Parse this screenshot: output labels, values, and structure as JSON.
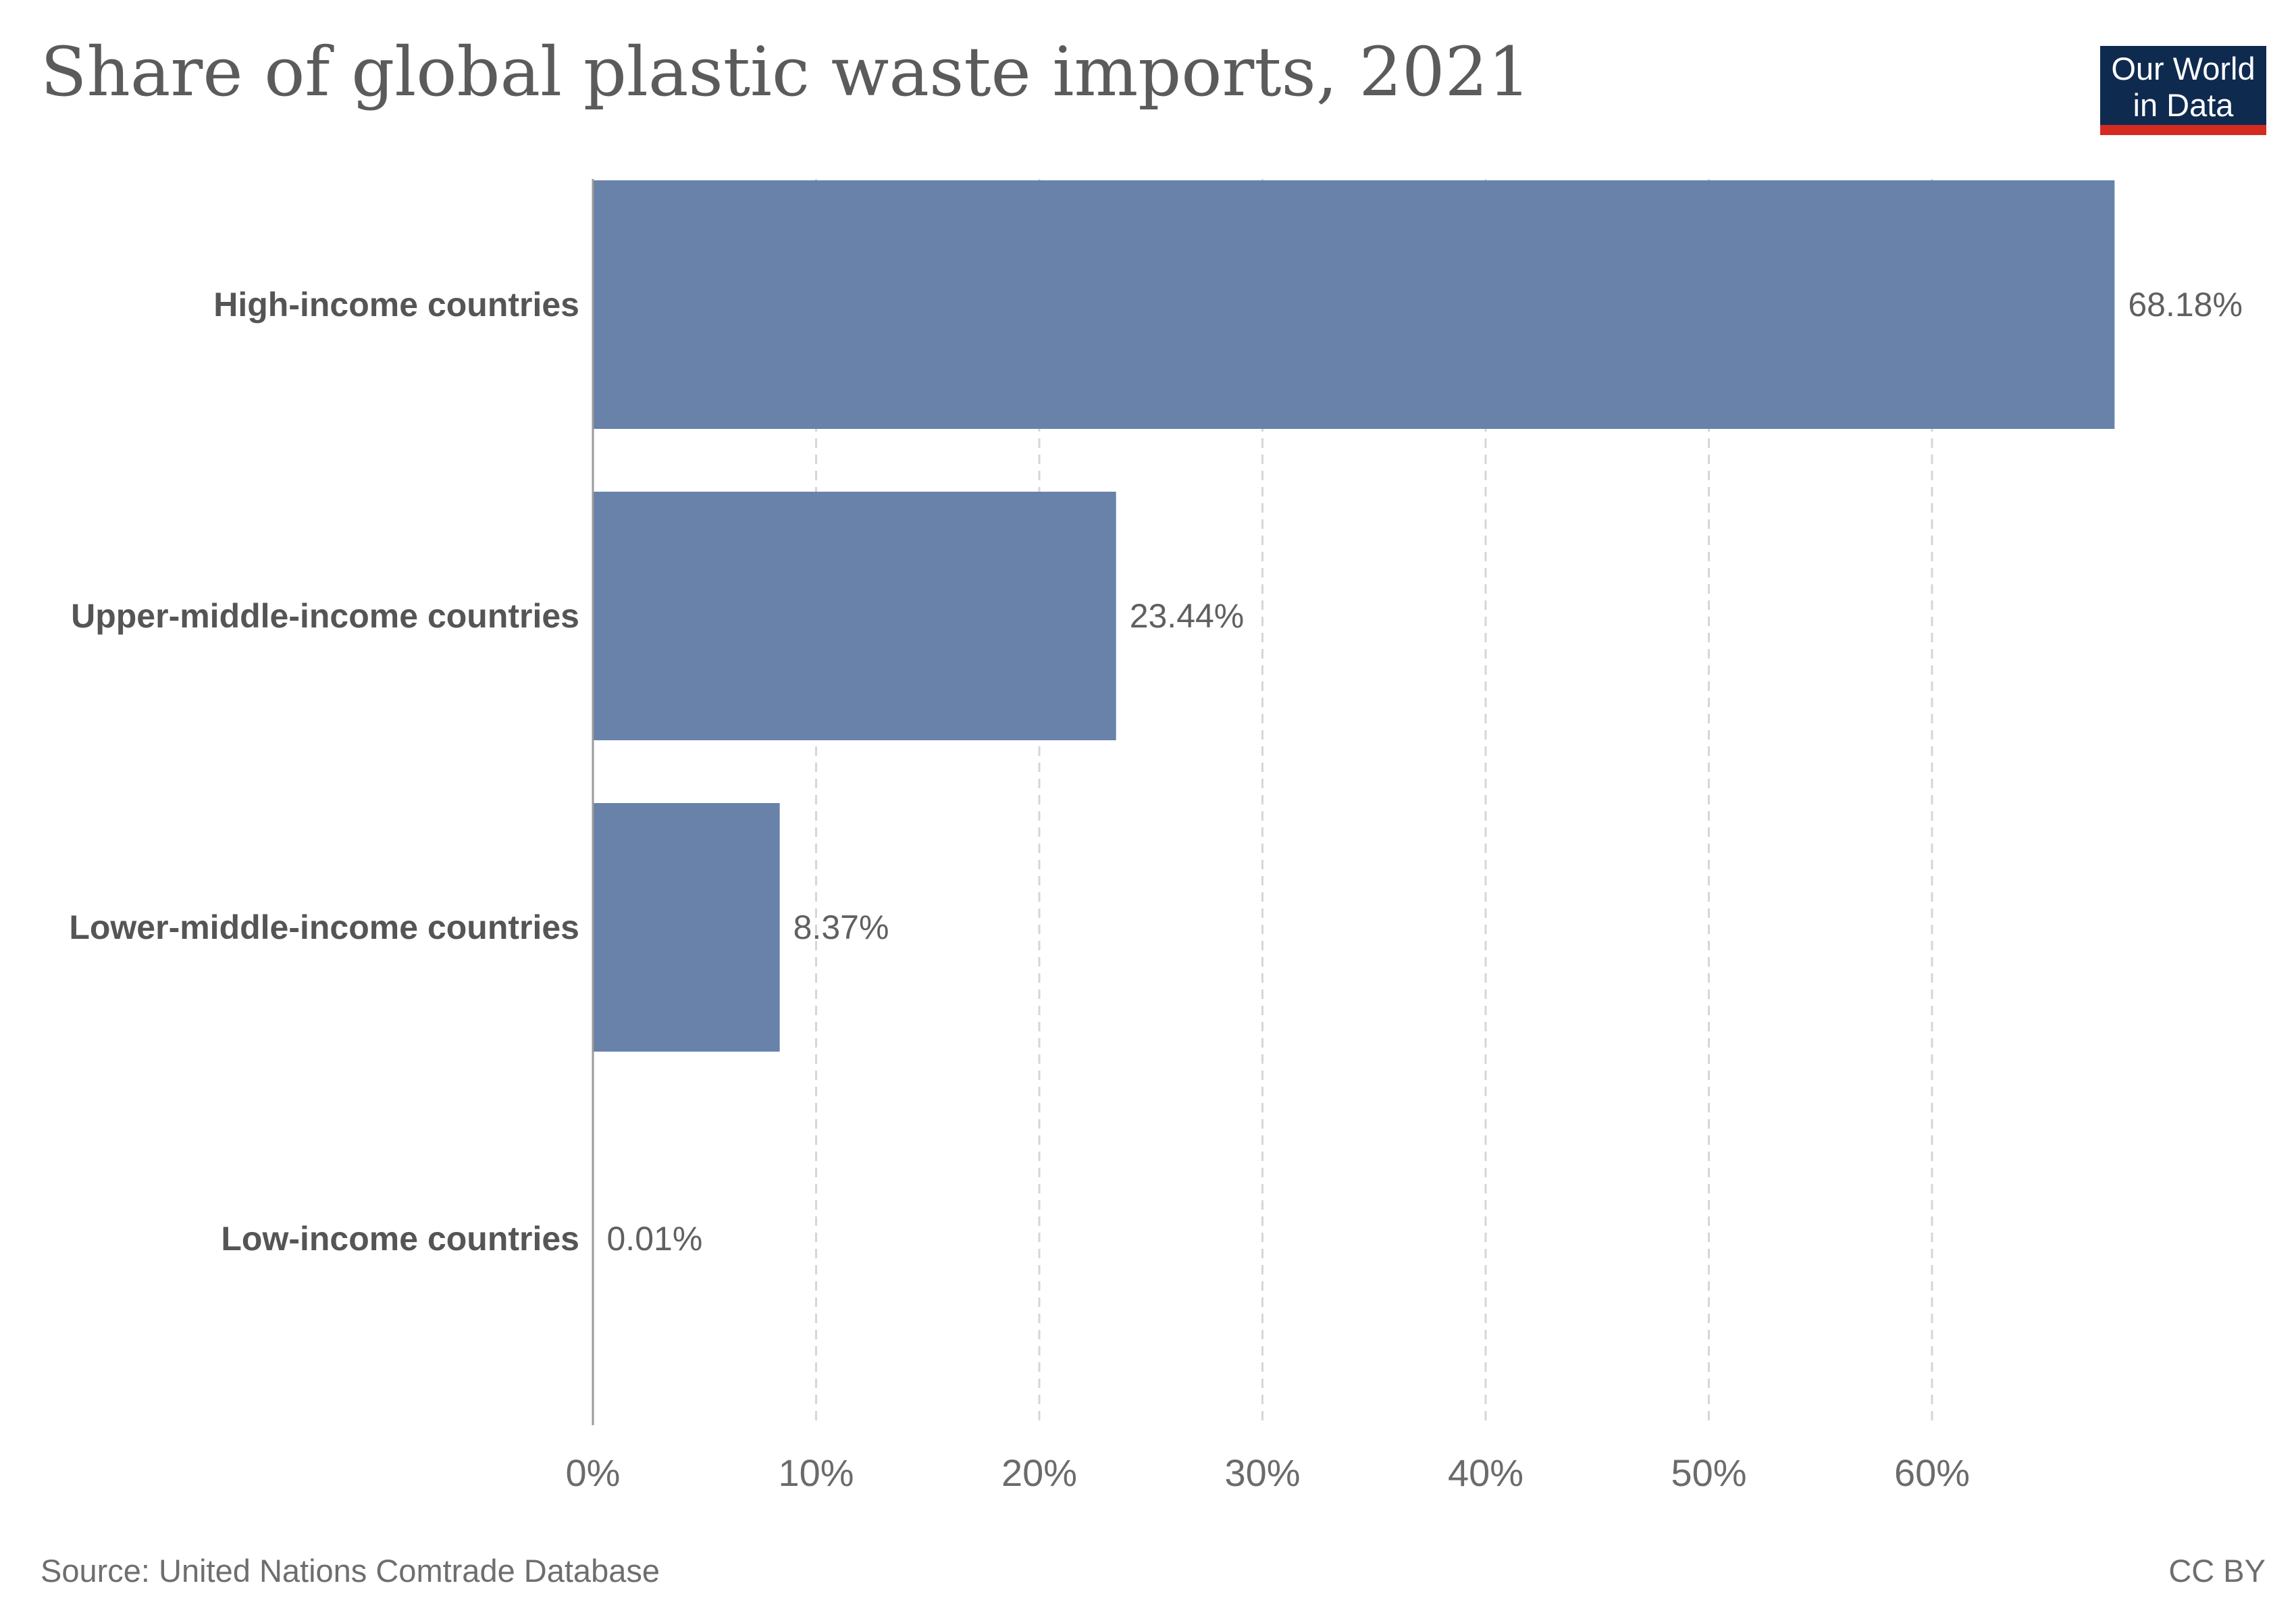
{
  "header": {
    "title": "Share of global plastic waste imports, 2021"
  },
  "logo": {
    "line1": "Our World",
    "line2": "in Data",
    "bg_color": "#0f2a4f",
    "accent_color": "#d42b21"
  },
  "footer": {
    "source": "Source: United Nations Comtrade Database",
    "license": "CC BY"
  },
  "chart_data": {
    "type": "bar",
    "orientation": "horizontal",
    "title": "Share of global plastic waste imports, 2021",
    "xlabel": "",
    "ylabel": "",
    "categories": [
      "High-income countries",
      "Upper-middle-income countries",
      "Lower-middle-income countries",
      "Low-income countries"
    ],
    "values": [
      68.18,
      23.44,
      8.37,
      0.01
    ],
    "value_labels": [
      "68.18%",
      "23.44%",
      "8.37%",
      "0.01%"
    ],
    "xlim": [
      0,
      70
    ],
    "xticks": [
      0,
      10,
      20,
      30,
      40,
      50,
      60
    ],
    "xtick_labels": [
      "0%",
      "10%",
      "20%",
      "30%",
      "40%",
      "50%",
      "60%"
    ],
    "grid": "vertical-dashed",
    "bar_color": "#6882aa"
  }
}
